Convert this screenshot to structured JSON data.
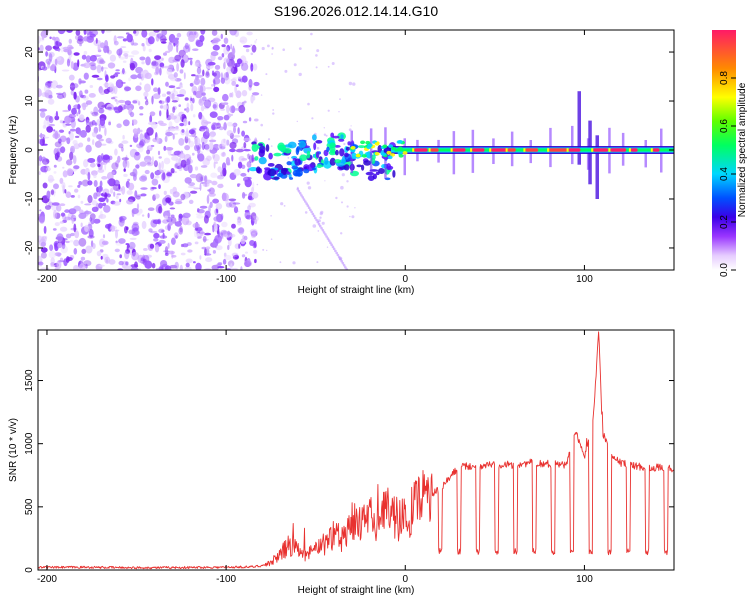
{
  "title": "S196.2026.012.14.14.G10",
  "chart_data": [
    {
      "type": "heatmap",
      "name": "spectrogram",
      "xlabel": "Height of straight line (km)",
      "ylabel": "Frequency (Hz)",
      "xlim": [
        -205,
        150
      ],
      "ylim": [
        -24.5,
        24.5
      ],
      "xticks": [
        -200,
        -100,
        0,
        100
      ],
      "yticks": [
        -20,
        -10,
        0,
        10,
        20
      ],
      "colorbar": {
        "label": "Normalized spectral amplitude",
        "range": [
          0,
          1
        ],
        "ticks": [
          0.0,
          0.2,
          0.4,
          0.6,
          0.8
        ]
      }
    },
    {
      "type": "line",
      "name": "snr",
      "xlabel": "Height of straight line (km)",
      "ylabel": "SNR (10 * v/v)",
      "xlim": [
        -205,
        150
      ],
      "ylim": [
        0,
        1900
      ],
      "xticks": [
        -200,
        -100,
        0,
        100
      ],
      "yticks": [
        0,
        500,
        1000,
        1500
      ],
      "series_color": "#e8312f",
      "series": [
        {
          "name": "SNR",
          "x": [
            -205,
            -180,
            -150,
            -120,
            -100,
            -85,
            -78,
            -75,
            -70,
            -65,
            -60,
            -55,
            -50,
            -45,
            -40,
            -35,
            -30,
            -25,
            -20,
            -15,
            -10,
            -5,
            0,
            5,
            10,
            15,
            20,
            25,
            30,
            40,
            50,
            60,
            70,
            80,
            90,
            95,
            100,
            105,
            108,
            110,
            115,
            120,
            130,
            140,
            150
          ],
          "y": [
            20,
            22,
            18,
            20,
            22,
            25,
            40,
            60,
            120,
            200,
            150,
            100,
            200,
            180,
            300,
            250,
            420,
            350,
            400,
            380,
            470,
            420,
            400,
            480,
            560,
            600,
            650,
            730,
            820,
            820,
            840,
            830,
            850,
            840,
            830,
            1100,
            900,
            1200,
            1900,
            1100,
            900,
            850,
            820,
            810,
            800
          ]
        }
      ]
    }
  ]
}
